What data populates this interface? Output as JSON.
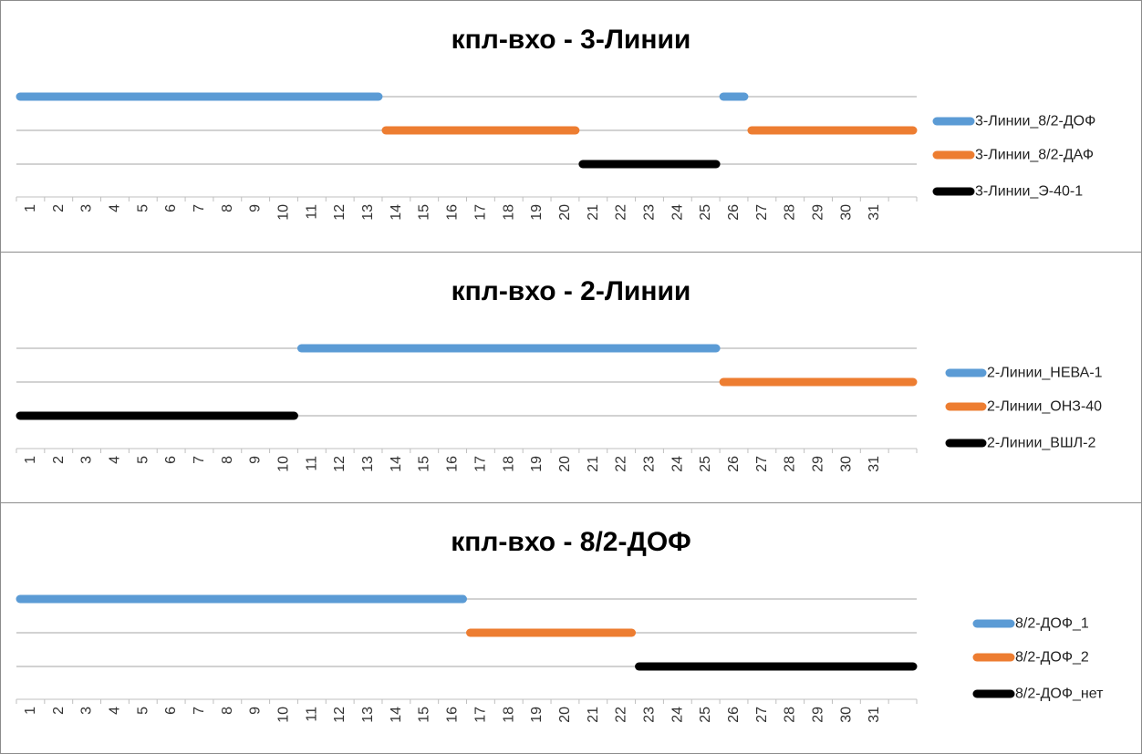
{
  "colors": {
    "blue": "#5b9bd5",
    "orange": "#ed7d31",
    "black": "#000000",
    "grid": "#a6a6a6",
    "axis": "#bfbfbf"
  },
  "chart_data": [
    {
      "type": "gantt",
      "title": "кпл-вхо - 3-Линии",
      "x_ticks": [
        "1",
        "2",
        "3",
        "4",
        "5",
        "6",
        "7",
        "8",
        "9",
        "10",
        "11",
        "12",
        "13",
        "14",
        "15",
        "16",
        "17",
        "18",
        "19",
        "20",
        "21",
        "22",
        "23",
        "24",
        "25",
        "26",
        "27",
        "28",
        "29",
        "30",
        "31"
      ],
      "xlim": [
        0,
        32
      ],
      "legend_position": "right",
      "series": [
        {
          "name": "3-Линии_8/2-ДОФ",
          "color": "#5b9bd5",
          "row": 0,
          "segments": [
            [
              0,
              13
            ],
            [
              25,
              26
            ]
          ]
        },
        {
          "name": "3-Линии_8/2-ДАФ",
          "color": "#ed7d31",
          "row": 1,
          "segments": [
            [
              13,
              20
            ],
            [
              26,
              32
            ]
          ]
        },
        {
          "name": "3-Линии_Э-40-1",
          "color": "#000000",
          "row": 2,
          "segments": [
            [
              20,
              25
            ]
          ]
        }
      ]
    },
    {
      "type": "gantt",
      "title": "кпл-вхо - 2-Линии",
      "x_ticks": [
        "1",
        "2",
        "3",
        "4",
        "5",
        "6",
        "7",
        "8",
        "9",
        "10",
        "11",
        "12",
        "13",
        "14",
        "15",
        "16",
        "17",
        "18",
        "19",
        "20",
        "21",
        "22",
        "23",
        "24",
        "25",
        "26",
        "27",
        "28",
        "29",
        "30",
        "31"
      ],
      "xlim": [
        0,
        32
      ],
      "legend_position": "right",
      "series": [
        {
          "name": "2-Линии_НЕВА-1",
          "color": "#5b9bd5",
          "row": 0,
          "segments": [
            [
              10,
              25
            ]
          ]
        },
        {
          "name": "2-Линии_ОНЗ-40",
          "color": "#ed7d31",
          "row": 1,
          "segments": [
            [
              25,
              32
            ]
          ]
        },
        {
          "name": "2-Линии_ВШЛ-2",
          "color": "#000000",
          "row": 2,
          "segments": [
            [
              0,
              10
            ]
          ]
        }
      ]
    },
    {
      "type": "gantt",
      "title": "кпл-вхо - 8/2-ДОФ",
      "x_ticks": [
        "1",
        "2",
        "3",
        "4",
        "5",
        "6",
        "7",
        "8",
        "9",
        "10",
        "11",
        "12",
        "13",
        "14",
        "15",
        "16",
        "17",
        "18",
        "19",
        "20",
        "21",
        "22",
        "23",
        "24",
        "25",
        "26",
        "27",
        "28",
        "29",
        "30",
        "31"
      ],
      "xlim": [
        0,
        32
      ],
      "legend_position": "right",
      "series": [
        {
          "name": "8/2-ДОФ_1",
          "color": "#5b9bd5",
          "row": 0,
          "segments": [
            [
              0,
              16
            ]
          ]
        },
        {
          "name": "8/2-ДОФ_2",
          "color": "#ed7d31",
          "row": 1,
          "segments": [
            [
              16,
              22
            ]
          ]
        },
        {
          "name": "8/2-ДОФ_нет",
          "color": "#000000",
          "row": 2,
          "segments": [
            [
              22,
              32
            ]
          ]
        }
      ]
    }
  ]
}
